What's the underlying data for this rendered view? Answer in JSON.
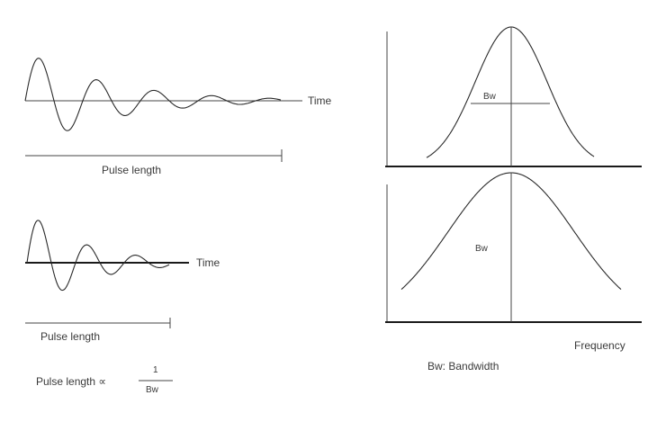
{
  "top_left": {
    "axis_label": "Time",
    "pulse_label": "Pulse length"
  },
  "bottom_left": {
    "axis_label": "Time",
    "pulse_label": "Pulse length"
  },
  "formula": {
    "lhs": "Pulse length ∝",
    "numerator": "1",
    "denominator": "Bw"
  },
  "top_right": {
    "bw_label": "Bw"
  },
  "bottom_right": {
    "bw_label": "Bw",
    "axis_label": "Frequency"
  },
  "legend": {
    "text": "Bw: Bandwidth"
  },
  "colors": {
    "ink": "#2a2a2a",
    "background": "#ffffff"
  }
}
